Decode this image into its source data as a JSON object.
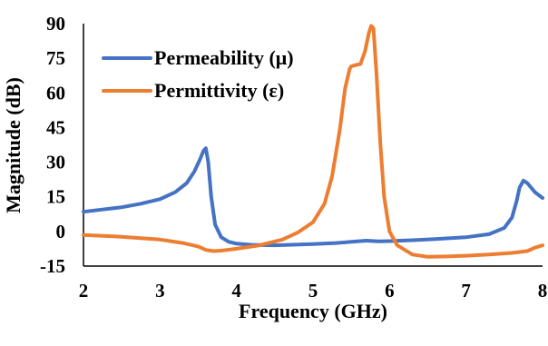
{
  "chart_data": {
    "type": "line",
    "title": "",
    "xlabel": "Frequency (GHz)",
    "ylabel": "Magnitude (dB)",
    "xlim": [
      2,
      8
    ],
    "ylim": [
      -15,
      90
    ],
    "xticks": [
      "2",
      "3",
      "4",
      "5",
      "6",
      "7",
      "8"
    ],
    "yticks": [
      "-15",
      "0",
      "15",
      "30",
      "45",
      "60",
      "75",
      "90"
    ],
    "grid": false,
    "legend": "top-left",
    "series": [
      {
        "name": "Permeability (μ)",
        "color": "#4472C4",
        "x": [
          2.0,
          2.25,
          2.5,
          2.75,
          3.0,
          3.2,
          3.35,
          3.45,
          3.52,
          3.57,
          3.6,
          3.63,
          3.67,
          3.72,
          3.8,
          3.9,
          4.0,
          4.2,
          4.5,
          5.0,
          5.3,
          5.5,
          5.7,
          5.85,
          6.0,
          6.3,
          6.6,
          7.0,
          7.3,
          7.5,
          7.6,
          7.66,
          7.7,
          7.75,
          7.8,
          7.85,
          7.9,
          8.0
        ],
        "y": [
          8.5,
          9.5,
          10.5,
          12.0,
          14.0,
          17.0,
          21.0,
          26.0,
          31.0,
          35.0,
          36.0,
          30.0,
          15.0,
          3.0,
          -2.5,
          -4.5,
          -5.3,
          -5.8,
          -6.0,
          -5.5,
          -5.0,
          -4.5,
          -4.0,
          -4.3,
          -4.2,
          -3.8,
          -3.3,
          -2.5,
          -1.2,
          1.5,
          6.0,
          13.0,
          19.0,
          22.0,
          21.0,
          19.0,
          17.0,
          14.5
        ]
      },
      {
        "name": "Permittivity (ε)",
        "color": "#ED7D31",
        "x": [
          2.0,
          2.5,
          3.0,
          3.3,
          3.5,
          3.6,
          3.7,
          3.8,
          4.0,
          4.3,
          4.6,
          4.8,
          5.0,
          5.15,
          5.25,
          5.35,
          5.42,
          5.48,
          5.5,
          5.55,
          5.62,
          5.68,
          5.73,
          5.76,
          5.79,
          5.83,
          5.88,
          5.93,
          6.0,
          6.1,
          6.3,
          6.5,
          6.8,
          7.0,
          7.3,
          7.6,
          7.8,
          7.9,
          8.0
        ],
        "y": [
          -1.5,
          -2.3,
          -3.5,
          -5.0,
          -6.5,
          -8.0,
          -8.5,
          -8.3,
          -7.5,
          -6.0,
          -3.5,
          -0.5,
          4.0,
          12.0,
          24.0,
          44.0,
          62.0,
          70.5,
          71.5,
          72.0,
          72.5,
          78.0,
          86.0,
          89.0,
          88.0,
          68.0,
          38.0,
          15.0,
          0.0,
          -6.0,
          -10.0,
          -11.0,
          -10.8,
          -10.5,
          -10.0,
          -9.3,
          -8.5,
          -7.0,
          -6.0
        ]
      }
    ]
  }
}
